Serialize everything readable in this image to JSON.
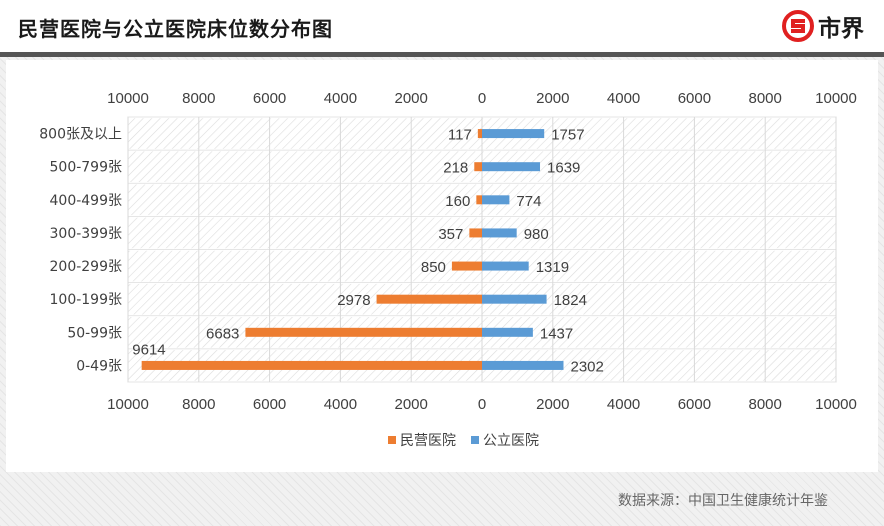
{
  "header": {
    "title": "民营医院与公立医院床位数分布图",
    "brand_name": "市界",
    "brand_icon": "s-in-circle-logo-icon",
    "brand_color": "#e02020"
  },
  "footer": {
    "source": "数据来源：中国卫生健康统计年鉴"
  },
  "chart_data": {
    "type": "bar",
    "orientation": "horizontal-diverging",
    "title": "",
    "xlabel": "",
    "ylabel": "",
    "categories": [
      "800张及以上",
      "500-799张",
      "400-499张",
      "300-399张",
      "200-299张",
      "100-199张",
      "50-99张",
      "0-49张"
    ],
    "series": [
      {
        "name": "民营医院",
        "color": "#ed7d31",
        "direction": "left",
        "values": [
          117,
          218,
          160,
          357,
          850,
          2978,
          6683,
          9614
        ]
      },
      {
        "name": "公立医院",
        "color": "#5b9bd5",
        "direction": "right",
        "values": [
          1757,
          1639,
          774,
          980,
          1319,
          1824,
          1437,
          2302
        ]
      }
    ],
    "xlim": [
      -10000,
      10000
    ],
    "tick_values": [
      -10000,
      -8000,
      -6000,
      -4000,
      -2000,
      0,
      2000,
      4000,
      6000,
      8000,
      10000
    ],
    "tick_labels": [
      "10000",
      "8000",
      "6000",
      "4000",
      "2000",
      "0",
      "2000",
      "4000",
      "6000",
      "8000",
      "10000"
    ],
    "axis_position": "top-and-bottom",
    "grid": true,
    "legend_position": "bottom-center"
  }
}
